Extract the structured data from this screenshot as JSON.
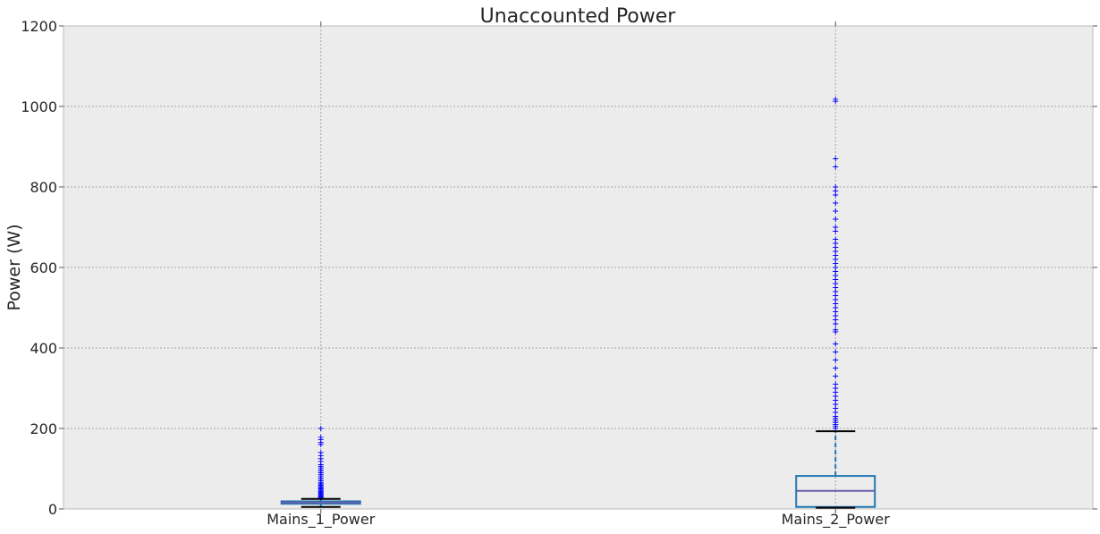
{
  "chart_data": {
    "type": "box",
    "title": "Unaccounted Power",
    "xlabel": "",
    "ylabel": "Power (W)",
    "ylim": [
      0,
      1200
    ],
    "yticks": [
      0,
      200,
      400,
      600,
      800,
      1000,
      1200
    ],
    "grid": true,
    "categories": [
      "Mains_1_Power",
      "Mains_2_Power"
    ],
    "boxes": [
      {
        "name": "Mains_1_Power",
        "whisker_low": 5,
        "q1": 13,
        "median": 16,
        "q3": 19,
        "whisker_high": 25,
        "outliers": [
          27,
          29,
          31,
          33,
          35,
          37,
          39,
          41,
          43,
          45,
          47,
          50,
          52,
          55,
          58,
          60,
          63,
          66,
          70,
          74,
          78,
          82,
          86,
          90,
          94,
          98,
          102,
          106,
          110,
          118,
          125,
          132,
          140,
          160,
          165,
          172,
          178,
          200
        ]
      },
      {
        "name": "Mains_2_Power",
        "whisker_low": 3,
        "q1": 5,
        "median": 45,
        "q3": 82,
        "whisker_high": 193,
        "outliers": [
          200,
          205,
          210,
          215,
          220,
          225,
          230,
          240,
          250,
          260,
          270,
          280,
          290,
          300,
          310,
          330,
          350,
          370,
          390,
          410,
          440,
          445,
          460,
          470,
          480,
          490,
          500,
          510,
          520,
          530,
          540,
          550,
          560,
          570,
          580,
          590,
          600,
          610,
          620,
          630,
          640,
          650,
          660,
          670,
          690,
          700,
          720,
          740,
          760,
          780,
          790,
          800,
          850,
          870,
          1013,
          1018
        ]
      }
    ],
    "colors": {
      "plot_bg": "#ececec",
      "grid": "#a6a6a6",
      "box_outline": "#1f77b4",
      "box_fill_mains1": "#4a74b4",
      "median": "#6a5fa8",
      "whisker_cap": "#000000",
      "whisker_line": "#1f77b4",
      "outlier": "#0000ff"
    }
  }
}
